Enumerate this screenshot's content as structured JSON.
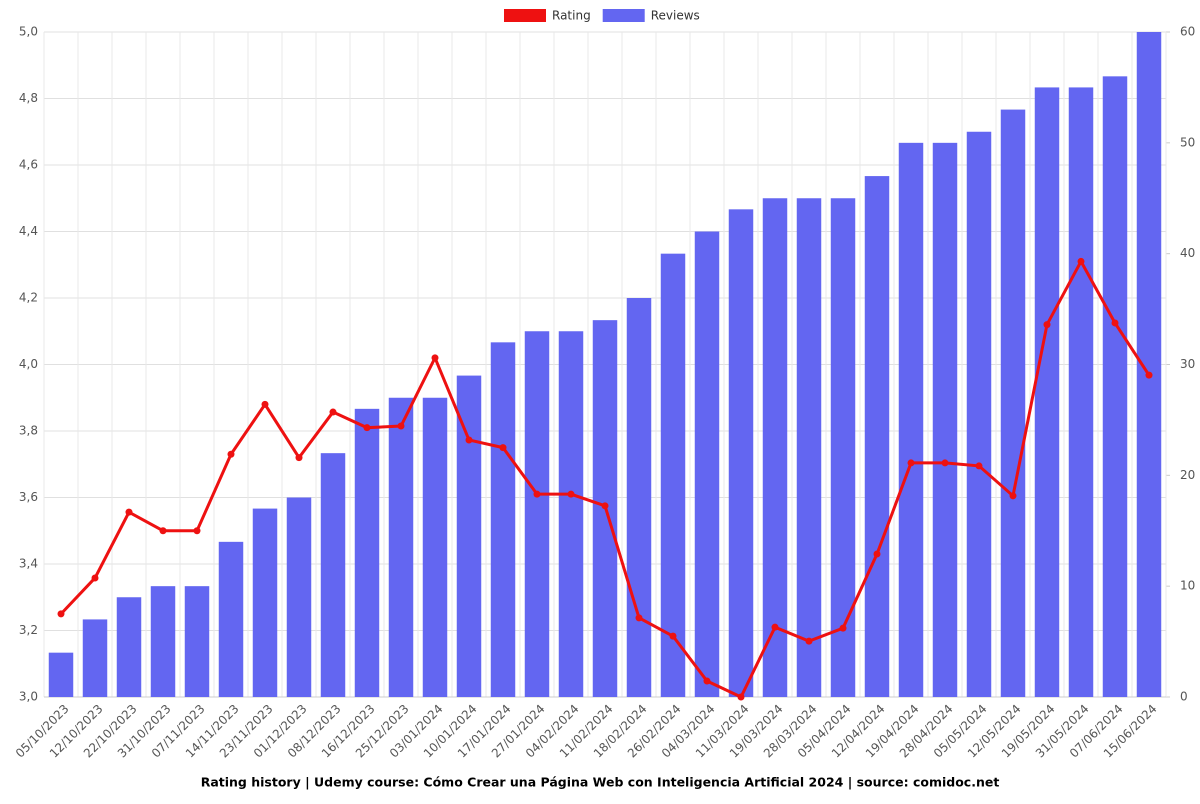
{
  "chart_data": {
    "type": "bar-line",
    "title": "Rating history | Udemy course: Cómo Crear una Página Web con Inteligencia Artificial 2024 | source: comidoc.net",
    "categories": [
      "05/10/2023",
      "12/10/2023",
      "22/10/2023",
      "31/10/2023",
      "07/11/2023",
      "14/11/2023",
      "23/11/2023",
      "01/12/2023",
      "08/12/2023",
      "16/12/2023",
      "25/12/2023",
      "03/01/2024",
      "10/01/2024",
      "17/01/2024",
      "27/01/2024",
      "04/02/2024",
      "11/02/2024",
      "18/02/2024",
      "26/02/2024",
      "04/03/2024",
      "11/03/2024",
      "19/03/2024",
      "28/03/2024",
      "05/04/2024",
      "12/04/2024",
      "19/04/2024",
      "28/04/2024",
      "05/05/2024",
      "12/05/2024",
      "19/05/2024",
      "31/05/2024",
      "07/06/2024",
      "15/06/2024"
    ],
    "series": [
      {
        "name": "Rating",
        "type": "line",
        "color": "#ee1111",
        "values": [
          3.25,
          3.358,
          3.556,
          3.5,
          3.5,
          3.73,
          3.88,
          3.72,
          3.857,
          3.81,
          3.815,
          4.02,
          3.773,
          3.75,
          3.61,
          3.61,
          3.575,
          3.238,
          3.183,
          3.048,
          3.0,
          3.21,
          3.168,
          3.207,
          3.43,
          3.704,
          3.704,
          3.695,
          3.605,
          4.12,
          4.31,
          4.125,
          3.968
        ]
      },
      {
        "name": "Reviews",
        "type": "bar",
        "axis": "y2",
        "color": "#6366f1",
        "values": [
          4,
          7,
          9,
          10,
          10,
          14,
          17,
          18,
          22,
          26,
          27,
          27,
          29,
          32,
          33,
          33,
          34,
          36,
          40,
          42,
          44,
          45,
          45,
          45,
          47,
          50,
          50,
          51,
          53,
          55,
          55,
          56,
          60
        ]
      }
    ],
    "ylim": [
      3.0,
      5.0
    ],
    "yticks": [
      {
        "value": 3.0,
        "label": "3,0"
      },
      {
        "value": 3.2,
        "label": "3,2"
      },
      {
        "value": 3.4,
        "label": "3,4"
      },
      {
        "value": 3.6,
        "label": "3,6"
      },
      {
        "value": 3.8,
        "label": "3,8"
      },
      {
        "value": 4.0,
        "label": "4,0"
      },
      {
        "value": 4.2,
        "label": "4,2"
      },
      {
        "value": 4.4,
        "label": "4,4"
      },
      {
        "value": 4.6,
        "label": "4,6"
      },
      {
        "value": 4.8,
        "label": "4,8"
      },
      {
        "value": 5.0,
        "label": "5,0"
      }
    ],
    "y2lim": [
      0,
      60
    ],
    "y2ticks": [
      0,
      10,
      20,
      30,
      40,
      50,
      60
    ],
    "grid": true,
    "legend": "top"
  }
}
